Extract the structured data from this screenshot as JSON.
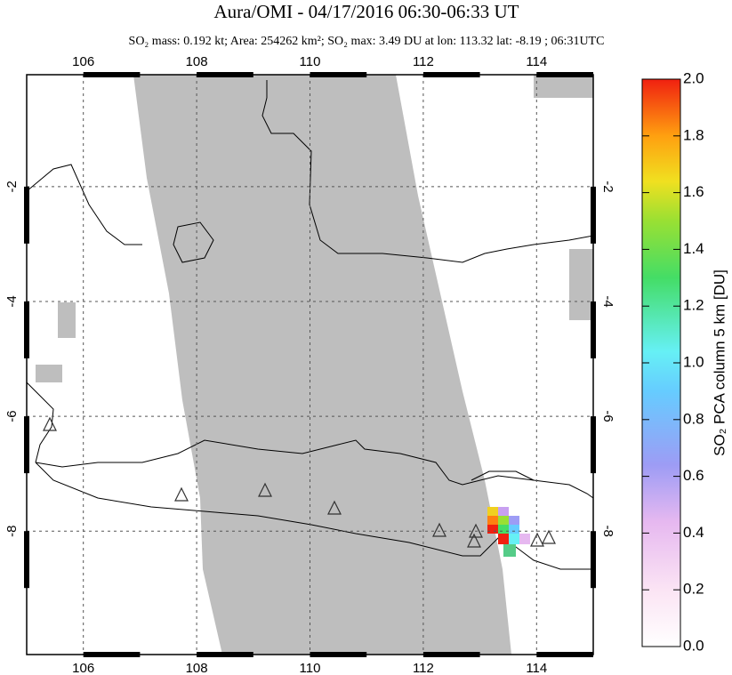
{
  "header": {
    "title": "Aura/OMI - 04/17/2016 06:30-06:33 UT",
    "subtitle": "SO₂ mass: 0.192 kt; Area: 254262 km²; SO₂ max: 3.49 DU at lon: 113.32 lat: -8.19 ; 06:31UTC"
  },
  "map": {
    "xlim": [
      105,
      115
    ],
    "ylim": [
      -10.15,
      -0.05
    ],
    "xticks": [
      106,
      108,
      110,
      112,
      114
    ],
    "yticks": [
      -2,
      -4,
      -6,
      -8
    ]
  },
  "colorbar": {
    "label": "SO₂ PCA column 5 km [DU]",
    "lim": [
      0,
      2
    ],
    "ticks": [
      {
        "value": 0,
        "label": "0.0"
      },
      0.2,
      0.4,
      0.6,
      0.8,
      {
        "value": 1,
        "label": "1.0"
      },
      1.2,
      1.4,
      1.6,
      1.8,
      {
        "value": 2,
        "label": "2.0"
      }
    ]
  }
}
